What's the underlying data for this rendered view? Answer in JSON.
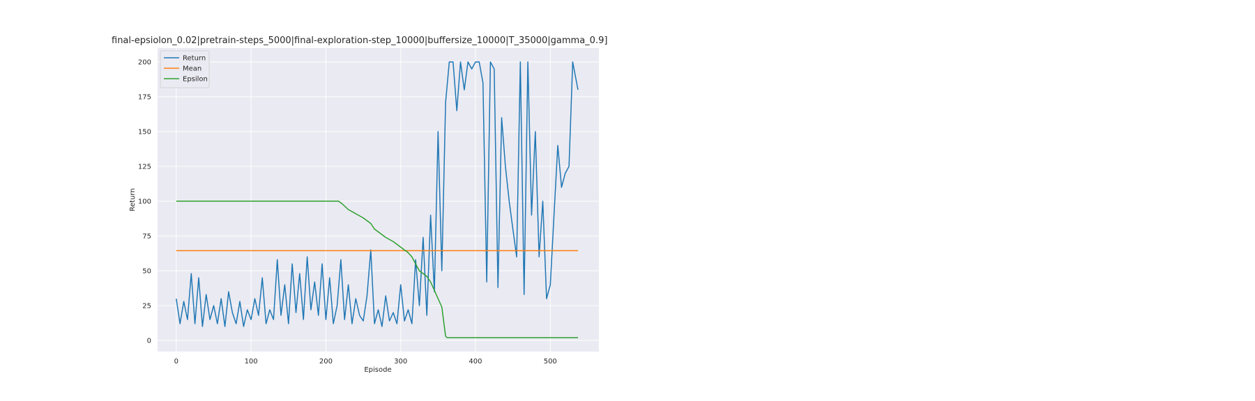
{
  "chart_data": {
    "type": "line",
    "title": "final-epsiolon_0.02|pretrain-steps_5000|final-exploration-step_10000|buffersize_10000|T_35000|gamma_0.9]",
    "xlabel": "Episode",
    "ylabel": "Return",
    "xlim": [
      -25,
      565
    ],
    "ylim": [
      -8,
      210
    ],
    "xticks": [
      0,
      100,
      200,
      300,
      400,
      500
    ],
    "yticks": [
      0,
      25,
      50,
      75,
      100,
      125,
      150,
      175,
      200
    ],
    "grid": true,
    "legend_position": "top-left",
    "series": [
      {
        "name": "Return",
        "color": "#1f77b4",
        "x": [
          0,
          5,
          10,
          15,
          20,
          25,
          30,
          35,
          40,
          45,
          50,
          55,
          60,
          65,
          70,
          75,
          80,
          85,
          90,
          95,
          100,
          105,
          110,
          115,
          120,
          125,
          130,
          135,
          140,
          145,
          150,
          155,
          160,
          165,
          170,
          175,
          180,
          185,
          190,
          195,
          200,
          205,
          210,
          215,
          220,
          225,
          230,
          235,
          240,
          245,
          250,
          255,
          260,
          265,
          270,
          275,
          280,
          285,
          290,
          295,
          300,
          305,
          310,
          315,
          320,
          325,
          330,
          335,
          340,
          345,
          350,
          355,
          360,
          365,
          370,
          375,
          380,
          385,
          390,
          395,
          400,
          405,
          410,
          415,
          420,
          425,
          430,
          435,
          440,
          445,
          450,
          455,
          460,
          465,
          470,
          475,
          480,
          485,
          490,
          495,
          500,
          505,
          510,
          515,
          520,
          525,
          530,
          537
        ],
        "values": [
          30,
          12,
          28,
          15,
          48,
          12,
          45,
          10,
          33,
          15,
          25,
          12,
          30,
          10,
          35,
          20,
          12,
          28,
          10,
          22,
          15,
          30,
          18,
          45,
          12,
          22,
          15,
          58,
          18,
          40,
          12,
          55,
          20,
          48,
          15,
          60,
          22,
          42,
          18,
          55,
          15,
          45,
          12,
          25,
          58,
          15,
          40,
          12,
          30,
          18,
          14,
          32,
          65,
          12,
          22,
          10,
          32,
          14,
          20,
          12,
          40,
          14,
          22,
          12,
          58,
          25,
          74,
          18,
          90,
          35,
          150,
          50,
          171,
          200,
          200,
          165,
          200,
          180,
          200,
          195,
          200,
          200,
          185,
          42,
          200,
          195,
          38,
          160,
          125,
          100,
          80,
          60,
          200,
          33,
          200,
          90,
          150,
          60,
          100,
          30,
          40,
          90,
          140,
          110,
          120,
          125,
          200,
          180
        ]
      },
      {
        "name": "Mean",
        "color": "#ff7f0e",
        "x": [
          0,
          537
        ],
        "values": [
          64.5,
          64.5
        ]
      },
      {
        "name": "Epsilon",
        "color": "#2ca02c",
        "x": [
          0,
          50,
          100,
          150,
          200,
          217,
          222,
          230,
          240,
          250,
          255,
          260,
          265,
          270,
          280,
          290,
          300,
          310,
          315,
          320,
          325,
          330,
          335,
          340,
          345,
          350,
          355,
          360,
          362,
          400,
          450,
          500,
          537
        ],
        "values": [
          100,
          100,
          100,
          100,
          100,
          100,
          98,
          94,
          91,
          88,
          86,
          84,
          80,
          78,
          74,
          71,
          67,
          63,
          60,
          55,
          50,
          48,
          46,
          42,
          36,
          30,
          24,
          3,
          2,
          2,
          2,
          2,
          2
        ]
      }
    ]
  }
}
